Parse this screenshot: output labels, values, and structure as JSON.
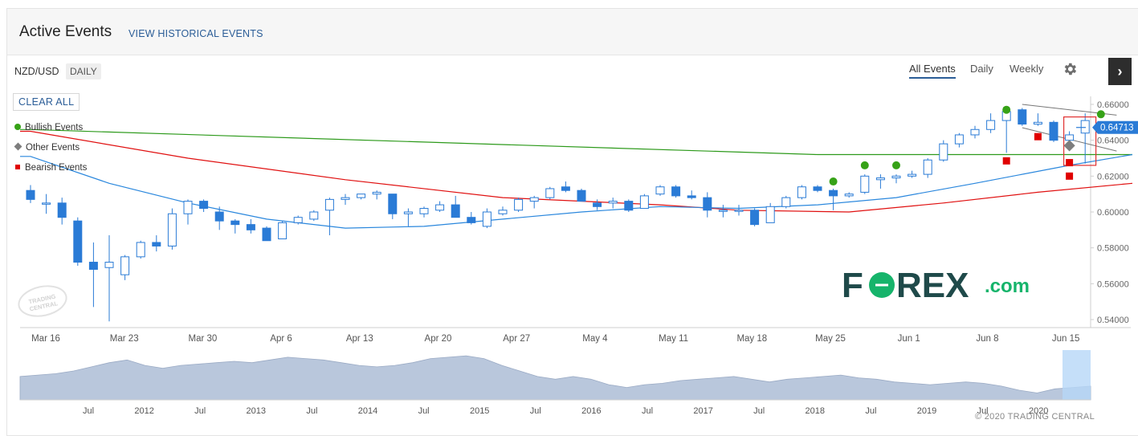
{
  "header": {
    "title": "Active Events",
    "history_link": "VIEW HISTORICAL EVENTS"
  },
  "toolbar": {
    "symbol": "NZD/USD",
    "period": "DAILY",
    "tabs": [
      "All Events",
      "Daily",
      "Weekly"
    ],
    "active_tab": "All Events",
    "settings_icon": "gear-icon",
    "expand_icon": "chevron-right-icon"
  },
  "legend": {
    "clear_all": "CLEAR ALL",
    "items": [
      {
        "label": "Bullish Events",
        "symbol": "circle",
        "color": "#36a217"
      },
      {
        "label": "Other Events",
        "symbol": "diamond",
        "color": "#7d7d7d"
      },
      {
        "label": "Bearish Events",
        "symbol": "square",
        "color": "#e00000"
      }
    ]
  },
  "watermarks": {
    "brand": "F0REX.com",
    "trading_central": "TRADING CENTRAL"
  },
  "copyright": "© 2020 TRADING CENTRAL",
  "chart_data": {
    "type": "candlestick",
    "title": "",
    "ylim": [
      0.535,
      0.661
    ],
    "yticks": [
      "0.66000",
      "0.64000",
      "0.62000",
      "0.60000",
      "0.58000",
      "0.56000",
      "0.54000"
    ],
    "xticks": [
      "Mar 16",
      "Mar 23",
      "Mar 30",
      "Apr 6",
      "Apr 13",
      "Apr 20",
      "Apr 27",
      "May 4",
      "May 11",
      "May 18",
      "May 25",
      "Jun 1",
      "Jun 8",
      "Jun 15"
    ],
    "last_price": "0.64713",
    "candles": [
      {
        "o": 0.612,
        "h": 0.615,
        "l": 0.605,
        "c": 0.607
      },
      {
        "o": 0.605,
        "h": 0.61,
        "l": 0.599,
        "c": 0.605
      },
      {
        "o": 0.605,
        "h": 0.608,
        "l": 0.593,
        "c": 0.597
      },
      {
        "o": 0.595,
        "h": 0.597,
        "l": 0.57,
        "c": 0.572
      },
      {
        "o": 0.572,
        "h": 0.583,
        "l": 0.547,
        "c": 0.568
      },
      {
        "o": 0.569,
        "h": 0.587,
        "l": 0.539,
        "c": 0.572
      },
      {
        "o": 0.565,
        "h": 0.576,
        "l": 0.562,
        "c": 0.575
      },
      {
        "o": 0.575,
        "h": 0.584,
        "l": 0.574,
        "c": 0.583
      },
      {
        "o": 0.583,
        "h": 0.587,
        "l": 0.578,
        "c": 0.581
      },
      {
        "o": 0.581,
        "h": 0.602,
        "l": 0.579,
        "c": 0.599
      },
      {
        "o": 0.599,
        "h": 0.607,
        "l": 0.593,
        "c": 0.606
      },
      {
        "o": 0.606,
        "h": 0.607,
        "l": 0.6,
        "c": 0.602
      },
      {
        "o": 0.6,
        "h": 0.603,
        "l": 0.59,
        "c": 0.595
      },
      {
        "o": 0.595,
        "h": 0.596,
        "l": 0.588,
        "c": 0.593
      },
      {
        "o": 0.593,
        "h": 0.596,
        "l": 0.588,
        "c": 0.59
      },
      {
        "o": 0.591,
        "h": 0.592,
        "l": 0.584,
        "c": 0.584
      },
      {
        "o": 0.585,
        "h": 0.595,
        "l": 0.585,
        "c": 0.594
      },
      {
        "o": 0.594,
        "h": 0.598,
        "l": 0.593,
        "c": 0.597
      },
      {
        "o": 0.596,
        "h": 0.601,
        "l": 0.595,
        "c": 0.6
      },
      {
        "o": 0.601,
        "h": 0.608,
        "l": 0.587,
        "c": 0.607
      },
      {
        "o": 0.607,
        "h": 0.61,
        "l": 0.604,
        "c": 0.608
      },
      {
        "o": 0.608,
        "h": 0.61,
        "l": 0.607,
        "c": 0.61
      },
      {
        "o": 0.61,
        "h": 0.612,
        "l": 0.607,
        "c": 0.611
      },
      {
        "o": 0.61,
        "h": 0.61,
        "l": 0.596,
        "c": 0.599
      },
      {
        "o": 0.599,
        "h": 0.602,
        "l": 0.592,
        "c": 0.6
      },
      {
        "o": 0.599,
        "h": 0.603,
        "l": 0.597,
        "c": 0.602
      },
      {
        "o": 0.601,
        "h": 0.606,
        "l": 0.6,
        "c": 0.604
      },
      {
        "o": 0.604,
        "h": 0.609,
        "l": 0.598,
        "c": 0.597
      },
      {
        "o": 0.597,
        "h": 0.6,
        "l": 0.593,
        "c": 0.594
      },
      {
        "o": 0.592,
        "h": 0.602,
        "l": 0.591,
        "c": 0.6
      },
      {
        "o": 0.599,
        "h": 0.603,
        "l": 0.598,
        "c": 0.601
      },
      {
        "o": 0.601,
        "h": 0.608,
        "l": 0.6,
        "c": 0.607
      },
      {
        "o": 0.606,
        "h": 0.609,
        "l": 0.602,
        "c": 0.608
      },
      {
        "o": 0.608,
        "h": 0.614,
        "l": 0.607,
        "c": 0.613
      },
      {
        "o": 0.614,
        "h": 0.617,
        "l": 0.611,
        "c": 0.612
      },
      {
        "o": 0.612,
        "h": 0.613,
        "l": 0.606,
        "c": 0.606
      },
      {
        "o": 0.605,
        "h": 0.607,
        "l": 0.601,
        "c": 0.603
      },
      {
        "o": 0.605,
        "h": 0.608,
        "l": 0.602,
        "c": 0.606
      },
      {
        "o": 0.606,
        "h": 0.607,
        "l": 0.6,
        "c": 0.601
      },
      {
        "o": 0.602,
        "h": 0.61,
        "l": 0.602,
        "c": 0.609
      },
      {
        "o": 0.61,
        "h": 0.615,
        "l": 0.609,
        "c": 0.614
      },
      {
        "o": 0.614,
        "h": 0.615,
        "l": 0.608,
        "c": 0.609
      },
      {
        "o": 0.609,
        "h": 0.612,
        "l": 0.607,
        "c": 0.608
      },
      {
        "o": 0.608,
        "h": 0.611,
        "l": 0.597,
        "c": 0.601
      },
      {
        "o": 0.601,
        "h": 0.604,
        "l": 0.597,
        "c": 0.601
      },
      {
        "o": 0.601,
        "h": 0.604,
        "l": 0.598,
        "c": 0.601
      },
      {
        "o": 0.601,
        "h": 0.602,
        "l": 0.592,
        "c": 0.593
      },
      {
        "o": 0.594,
        "h": 0.605,
        "l": 0.594,
        "c": 0.603
      },
      {
        "o": 0.603,
        "h": 0.609,
        "l": 0.602,
        "c": 0.608
      },
      {
        "o": 0.608,
        "h": 0.615,
        "l": 0.607,
        "c": 0.614
      },
      {
        "o": 0.614,
        "h": 0.615,
        "l": 0.611,
        "c": 0.612
      },
      {
        "o": 0.612,
        "h": 0.613,
        "l": 0.601,
        "c": 0.609
      },
      {
        "o": 0.609,
        "h": 0.611,
        "l": 0.608,
        "c": 0.61
      },
      {
        "o": 0.611,
        "h": 0.621,
        "l": 0.61,
        "c": 0.62
      },
      {
        "o": 0.618,
        "h": 0.621,
        "l": 0.613,
        "c": 0.619
      },
      {
        "o": 0.619,
        "h": 0.621,
        "l": 0.616,
        "c": 0.62
      },
      {
        "o": 0.62,
        "h": 0.623,
        "l": 0.619,
        "c": 0.621
      },
      {
        "o": 0.621,
        "h": 0.63,
        "l": 0.619,
        "c": 0.629
      },
      {
        "o": 0.629,
        "h": 0.64,
        "l": 0.628,
        "c": 0.638
      },
      {
        "o": 0.638,
        "h": 0.644,
        "l": 0.636,
        "c": 0.643
      },
      {
        "o": 0.643,
        "h": 0.648,
        "l": 0.641,
        "c": 0.646
      },
      {
        "o": 0.646,
        "h": 0.655,
        "l": 0.644,
        "c": 0.651
      },
      {
        "o": 0.651,
        "h": 0.658,
        "l": 0.633,
        "c": 0.656
      },
      {
        "o": 0.657,
        "h": 0.658,
        "l": 0.648,
        "c": 0.649
      },
      {
        "o": 0.649,
        "h": 0.655,
        "l": 0.648,
        "c": 0.65
      },
      {
        "o": 0.65,
        "h": 0.651,
        "l": 0.639,
        "c": 0.64
      },
      {
        "o": 0.64,
        "h": 0.645,
        "l": 0.636,
        "c": 0.643
      },
      {
        "o": 0.644,
        "h": 0.655,
        "l": 0.627,
        "c": 0.651
      }
    ],
    "ma_series": [
      {
        "color": "#2d9a1b",
        "points": [
          [
            0,
            0.646
          ],
          [
            50,
            0.632
          ],
          [
            70,
            0.632
          ]
        ]
      },
      {
        "color": "#e01010",
        "points": [
          [
            0,
            0.645
          ],
          [
            10,
            0.63
          ],
          [
            20,
            0.618
          ],
          [
            30,
            0.608
          ],
          [
            40,
            0.604
          ],
          [
            45,
            0.601
          ],
          [
            52,
            0.6
          ],
          [
            58,
            0.605
          ],
          [
            64,
            0.611
          ],
          [
            70,
            0.616
          ]
        ]
      },
      {
        "color": "#2a87dd",
        "points": [
          [
            0,
            0.631
          ],
          [
            5,
            0.616
          ],
          [
            10,
            0.605
          ],
          [
            15,
            0.596
          ],
          [
            20,
            0.591
          ],
          [
            25,
            0.592
          ],
          [
            30,
            0.596
          ],
          [
            35,
            0.6
          ],
          [
            40,
            0.603
          ],
          [
            45,
            0.602
          ],
          [
            50,
            0.604
          ],
          [
            55,
            0.608
          ],
          [
            60,
            0.616
          ],
          [
            66,
            0.626
          ],
          [
            70,
            0.632
          ]
        ]
      }
    ],
    "channel_lines": [
      {
        "points": [
          [
            63,
            0.66
          ],
          [
            69,
            0.654
          ]
        ]
      },
      {
        "points": [
          [
            63,
            0.647
          ],
          [
            69,
            0.634
          ]
        ]
      }
    ],
    "events": [
      {
        "type": "bullish",
        "index": 51,
        "value": 0.617
      },
      {
        "type": "bullish",
        "index": 53,
        "value": 0.626
      },
      {
        "type": "bullish",
        "index": 55,
        "value": 0.626
      },
      {
        "type": "bullish",
        "index": 62,
        "value": 0.657
      },
      {
        "type": "bullish",
        "index": 68,
        "value": 0.6545
      },
      {
        "type": "other",
        "index": 66,
        "value": 0.637
      },
      {
        "type": "bearish",
        "index": 62,
        "value": 0.6285
      },
      {
        "type": "bearish",
        "index": 64,
        "value": 0.642
      },
      {
        "type": "bearish",
        "index": 66,
        "value": 0.6275
      },
      {
        "type": "bearish",
        "index": 66,
        "value": 0.62
      }
    ],
    "navigator": {
      "xticks": [
        "Jul",
        "2012",
        "Jul",
        "2013",
        "Jul",
        "2014",
        "Jul",
        "2015",
        "Jul",
        "2016",
        "Jul",
        "2017",
        "Jul",
        "2018",
        "Jul",
        "2019",
        "Jul",
        "2020"
      ],
      "values": [
        0.72,
        0.73,
        0.74,
        0.76,
        0.79,
        0.82,
        0.84,
        0.8,
        0.78,
        0.8,
        0.81,
        0.82,
        0.83,
        0.82,
        0.84,
        0.86,
        0.85,
        0.84,
        0.82,
        0.8,
        0.79,
        0.8,
        0.82,
        0.85,
        0.86,
        0.87,
        0.85,
        0.8,
        0.76,
        0.72,
        0.7,
        0.72,
        0.7,
        0.66,
        0.64,
        0.66,
        0.67,
        0.69,
        0.7,
        0.71,
        0.72,
        0.7,
        0.68,
        0.7,
        0.71,
        0.72,
        0.73,
        0.71,
        0.7,
        0.68,
        0.67,
        0.66,
        0.67,
        0.68,
        0.67,
        0.65,
        0.62,
        0.6,
        0.63,
        0.64,
        0.65
      ]
    }
  }
}
